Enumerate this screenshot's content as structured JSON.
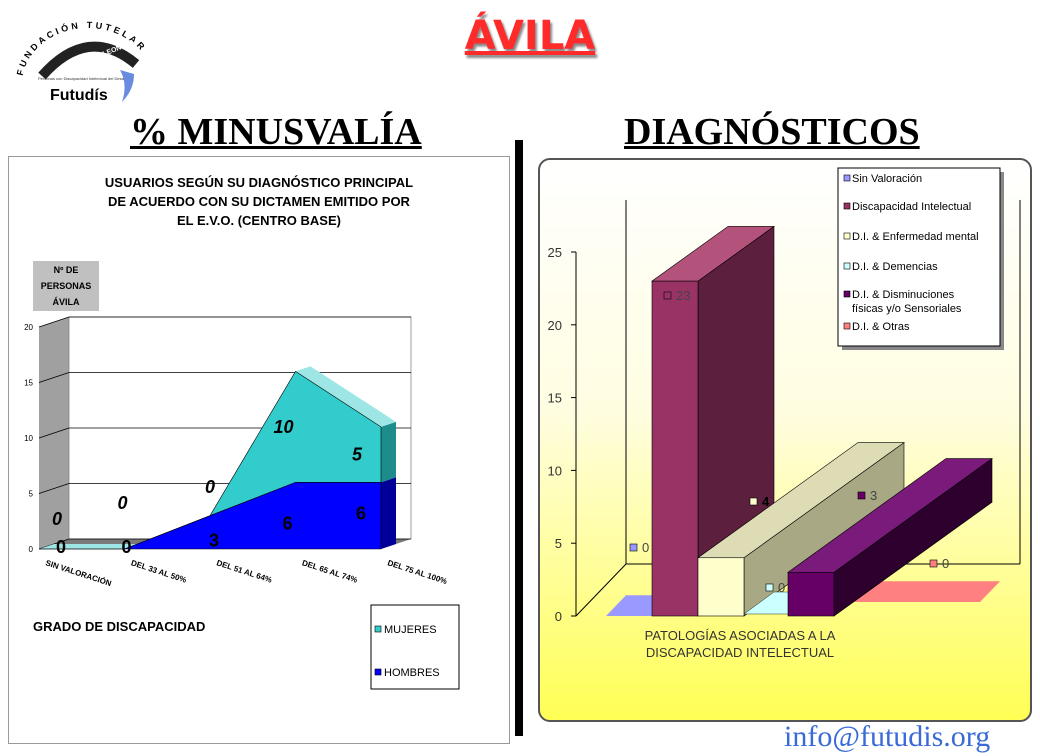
{
  "header": {
    "title": "ÁVILA",
    "logo": {
      "arc_text": "FUNDACIÓN TUTELAR",
      "band_text": "CASTELLANO LEONESA",
      "sub_text": "Personas con Discapacidad Intelectual del Desarrollo",
      "brand": "Futudís"
    },
    "left_section_title": "% MINUSVALÍA",
    "right_section_title": "DIAGNÓSTICOS",
    "email": "info@futudis.org"
  },
  "colors": {
    "title_red": "#ff2a2a",
    "mujeres": "#33cccc",
    "hombres": "#0000ff",
    "email_blue": "#3a6ad8"
  },
  "chart_data": [
    {
      "type": "area",
      "title": "USUARIOS SEGÚN SU DIAGNÓSTICO PRINCIPAL DE ACUERDO CON SU DICTAMEN EMITIDO POR EL E.V.O. (CENTRO BASE)",
      "title_lines": [
        "USUARIOS SEGÚN SU DIAGNÓSTICO PRINCIPAL",
        "DE ACUERDO CON SU DICTAMEN EMITIDO POR",
        "EL E.V.O. (CENTRO BASE)"
      ],
      "ylabel_lines": [
        "Nº DE",
        "PERSONAS",
        "ÁVILA"
      ],
      "xlabel": "GRADO DE DISCAPACIDAD",
      "categories": [
        "SIN VALORACIÓN",
        "DEL 33 AL 50%",
        "DEL 51 AL 64%",
        "DEL 65 AL 74%",
        "DEL 75 AL 100%"
      ],
      "stacked": true,
      "series": [
        {
          "name": "HOMBRES",
          "color": "#0000ff",
          "values": [
            0,
            0,
            3,
            6,
            6
          ]
        },
        {
          "name": "MUJERES",
          "color": "#33cccc",
          "values": [
            0,
            0,
            0,
            10,
            5
          ]
        }
      ],
      "ylim": [
        0,
        20
      ],
      "yticks": [
        0,
        5,
        10,
        15,
        20
      ],
      "grid": true,
      "legend": "bottom-right"
    },
    {
      "type": "bar",
      "xlabel_lines": [
        "PATOLOGÍAS ASOCIADAS A LA",
        "DISCAPACIDAD INTELECTUAL"
      ],
      "categories": [
        "Sin Valoración",
        "Discapacidad Intelectual",
        "D.I. & Enfermedad mental",
        "D.I. & Demencias",
        "D.I. & Disminuciones físicas y/o Sensoriales",
        "D.I. & Otras"
      ],
      "legend_lines": [
        [
          "Sin Valoración"
        ],
        [
          "Discapacidad Intelectual"
        ],
        [
          "D.I. & Enfermedad mental"
        ],
        [
          "D.I. & Demencias"
        ],
        [
          "D.I. & Disminuciones",
          "físicas y/o Sensoriales"
        ],
        [
          "D.I. & Otras"
        ]
      ],
      "values": [
        0,
        23,
        4,
        0,
        3,
        0
      ],
      "colors": [
        "#9999ff",
        "#993366",
        "#ffffcc",
        "#ccffff",
        "#660066",
        "#ff8080"
      ],
      "ylim": [
        0,
        25
      ],
      "yticks": [
        0,
        5,
        10,
        15,
        20,
        25
      ],
      "grid": false,
      "legend": "top-right"
    }
  ]
}
